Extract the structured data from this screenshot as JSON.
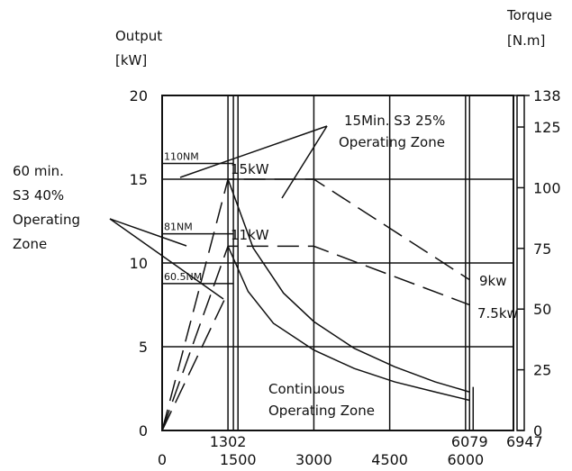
{
  "chart_data": {
    "type": "line",
    "title": "",
    "left_axis": {
      "label_line1": "Output",
      "label_line2": "[kW]",
      "ticks": [
        0,
        5,
        10,
        15,
        20
      ],
      "range": [
        0,
        20
      ]
    },
    "right_axis": {
      "label_line1": "Torque",
      "label_line2": "[N.m]",
      "ticks": [
        0,
        25,
        50,
        75,
        100,
        125,
        138
      ],
      "range": [
        0,
        138
      ]
    },
    "x_axis": {
      "range": [
        0,
        6947
      ],
      "bottom_ticks": [
        {
          "value": 0,
          "label": "0"
        },
        {
          "value": 1500,
          "label": "1500"
        },
        {
          "value": 3000,
          "label": "3000"
        },
        {
          "value": 4500,
          "label": "4500"
        },
        {
          "value": 6000,
          "label": "6000"
        }
      ],
      "upper_ticks": [
        {
          "value": 1302,
          "label": "1302"
        },
        {
          "value": 6079,
          "label": "6079"
        },
        {
          "value": 6947,
          "label": "6947"
        }
      ],
      "grid_lines": [
        1302,
        1500,
        3000,
        4500,
        6000,
        6079
      ]
    },
    "y_grid_lines": [
      5,
      10,
      15,
      20
    ],
    "torque_levels": [
      {
        "label": "110NM",
        "torque": 110
      },
      {
        "label": "81NM",
        "torque": 81
      },
      {
        "label": "60.5NM",
        "torque": 60.5
      }
    ],
    "series": [
      {
        "style": "dashed",
        "x": [
          0,
          1302,
          3000,
          6079
        ],
        "y": [
          0,
          15,
          15,
          9
        ]
      },
      {
        "style": "dashed",
        "x": [
          0,
          1302,
          3000,
          6079
        ],
        "y": [
          0,
          11,
          11,
          7.5
        ]
      },
      {
        "style": "dashed",
        "x": [
          0,
          1302
        ],
        "y": [
          0,
          8.25
        ]
      },
      {
        "style": "solid",
        "x": [
          1302,
          1800,
          2400,
          3000,
          3800,
          4600,
          5400,
          6079
        ],
        "y": [
          15,
          10.9,
          8.2,
          6.5,
          4.9,
          3.8,
          2.9,
          2.3
        ]
      },
      {
        "style": "solid",
        "x": [
          1302,
          1700,
          2200,
          3000,
          3800,
          4600,
          5400,
          6079
        ],
        "y": [
          11,
          8.3,
          6.4,
          4.8,
          3.7,
          2.9,
          2.3,
          1.8
        ]
      }
    ],
    "annotations": {
      "label_15kw": "15kW",
      "label_11kw": "11kW",
      "label_9kw": "9kw",
      "label_75kw": "7.5kw",
      "zone_s3_25": [
        "15Min.  S3  25%",
        "Operating  Zone"
      ],
      "zone_s3_40": [
        "60  min.",
        "S3  40%",
        "Operating",
        "Zone"
      ],
      "zone_continuous": [
        "Continuous",
        "Operating  Zone"
      ]
    },
    "grid": true
  }
}
